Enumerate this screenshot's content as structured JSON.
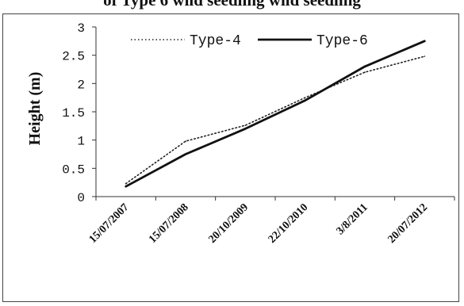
{
  "chart_data": {
    "type": "line",
    "title": "of Type 6 wild seedling wild seedling",
    "xlabel": "",
    "ylabel": "Height (m)",
    "ylim": [
      0,
      3
    ],
    "yticks": [
      "0",
      "0.5",
      "1",
      "1.5",
      "2",
      "2.5",
      "3"
    ],
    "x": [
      "15/07/2007",
      "15/07/2008",
      "20/10/2009",
      "22/10/2010",
      "3/8/2011",
      "20/07/2012"
    ],
    "grid": false,
    "legend_position": "top",
    "series": [
      {
        "name": "Type-4",
        "style": "dotted",
        "color": "#222222",
        "values": [
          0.23,
          0.98,
          1.26,
          1.75,
          2.2,
          2.48
        ]
      },
      {
        "name": "Type-6",
        "style": "solid",
        "color": "#111111",
        "values": [
          0.18,
          0.75,
          1.2,
          1.7,
          2.3,
          2.75
        ]
      }
    ]
  }
}
